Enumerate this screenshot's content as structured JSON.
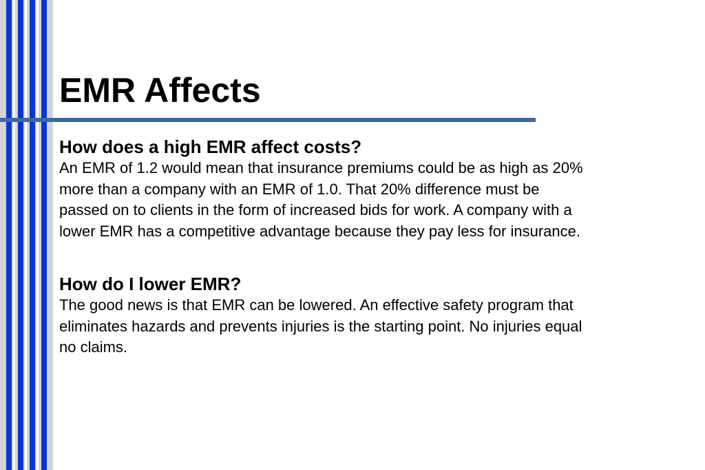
{
  "slide": {
    "title": "EMR Affects",
    "sections": [
      {
        "heading": "How does a high EMR affect costs?",
        "lines": [
          "An EMR of 1.2 would mean that insurance premiums could be as high as 20%",
          "more than a company with an EMR of 1.0.  That 20% difference must be",
          "passed on to clients in the form of increased bids for work.  A company with a",
          "lower EMR has a competitive advantage because they pay less for insurance."
        ]
      },
      {
        "heading": "How do I lower EMR?",
        "lines": [
          "The good news is that EMR can be lowered.  An effective safety program that",
          "eliminates hazards and prevents injuries is the starting point.  No injuries equal",
          "no claims."
        ]
      }
    ]
  }
}
